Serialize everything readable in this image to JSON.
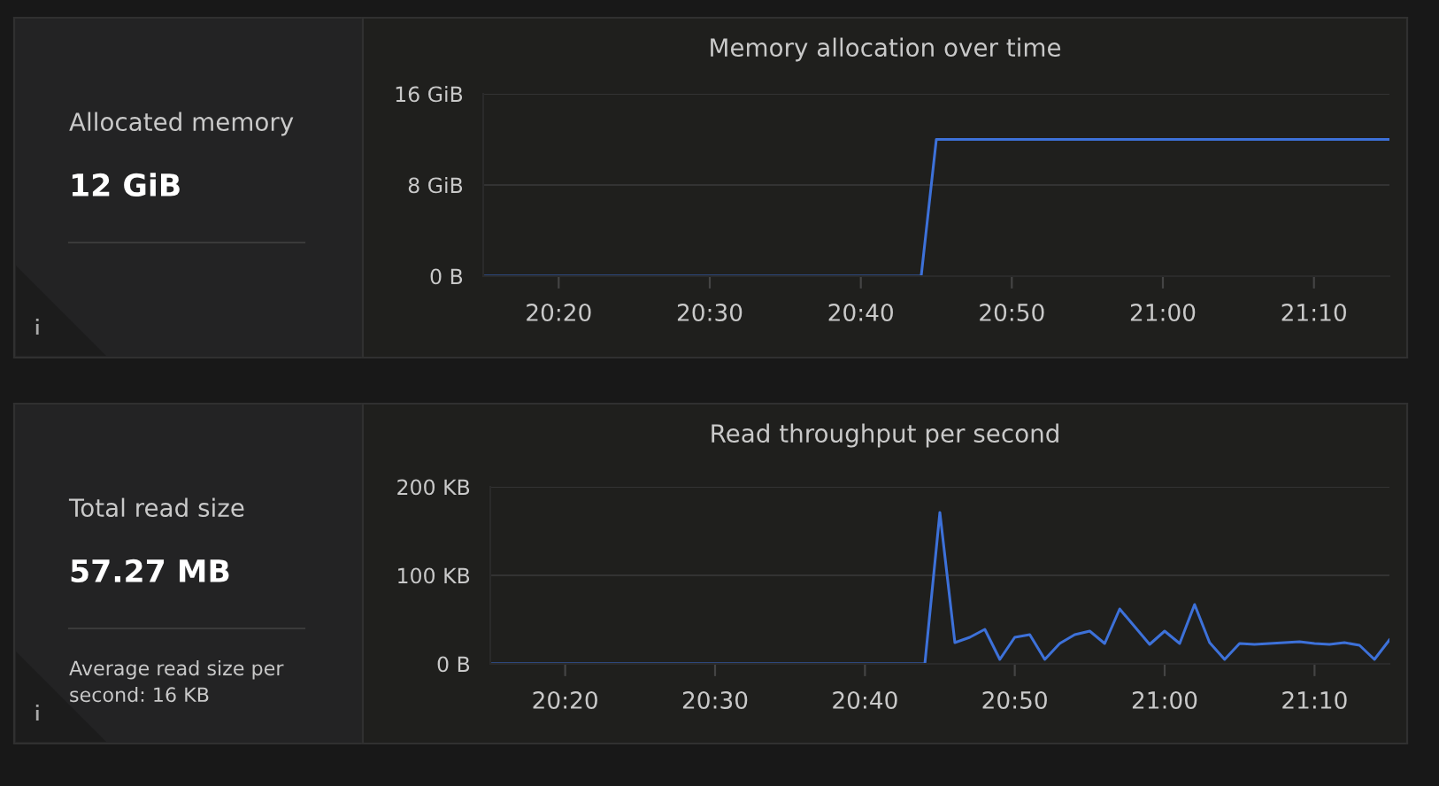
{
  "chart_data": [
    {
      "type": "other",
      "title": "Allocated memory",
      "annotations": [
        "12 GiB"
      ]
    },
    {
      "type": "line",
      "title": "Memory allocation over time",
      "xlim": [
        20.25,
        21.25
      ],
      "ylim": [
        0,
        16
      ],
      "xticks": [
        {
          "value": 20.3333,
          "label": "20:20"
        },
        {
          "value": 20.5,
          "label": "20:30"
        },
        {
          "value": 20.6667,
          "label": "20:40"
        },
        {
          "value": 20.8333,
          "label": "20:50"
        },
        {
          "value": 21.0,
          "label": "21:00"
        },
        {
          "value": 21.1667,
          "label": "21:10"
        }
      ],
      "yticks": [
        {
          "value": 0,
          "label": "0 B"
        },
        {
          "value": 8,
          "label": "8 GiB"
        },
        {
          "value": 16,
          "label": "16 GiB"
        }
      ],
      "grid": "y",
      "line_style": "solid",
      "series": [
        {
          "color": "#3d71d9",
          "x": [
            20.25,
            20.7333,
            20.75,
            21.25
          ],
          "values": [
            0,
            0,
            12,
            12
          ]
        }
      ]
    },
    {
      "type": "other",
      "title": "Total read size",
      "annotations": [
        "57.27 MB",
        "Average read size per second: 16 KB"
      ]
    },
    {
      "type": "line",
      "title": "Read throughput per second",
      "xlim": [
        20.25,
        21.25
      ],
      "ylim": [
        0,
        200
      ],
      "xticks": [
        {
          "value": 20.3333,
          "label": "20:20"
        },
        {
          "value": 20.5,
          "label": "20:30"
        },
        {
          "value": 20.6667,
          "label": "20:40"
        },
        {
          "value": 20.8333,
          "label": "20:50"
        },
        {
          "value": 21.0,
          "label": "21:00"
        },
        {
          "value": 21.1667,
          "label": "21:10"
        }
      ],
      "yticks": [
        {
          "value": 0,
          "label": "0 B"
        },
        {
          "value": 100,
          "label": "100 KB"
        },
        {
          "value": 200,
          "label": "200 KB"
        }
      ],
      "grid": "y",
      "line_style": "solid",
      "series": [
        {
          "color": "#3d71d9",
          "x": [
            20.25,
            20.7333,
            20.75,
            20.7667,
            20.7833,
            20.8,
            20.8167,
            20.8333,
            20.85,
            20.8667,
            20.8833,
            20.9,
            20.9167,
            20.9333,
            20.95,
            20.9667,
            20.9833,
            21.0,
            21.0167,
            21.0333,
            21.05,
            21.0667,
            21.0833,
            21.1,
            21.1167,
            21.1333,
            21.15,
            21.1667,
            21.1833,
            21.2,
            21.2167,
            21.2333,
            21.25
          ],
          "values": [
            0,
            0,
            171,
            24,
            30,
            39,
            5,
            30,
            33,
            5,
            23,
            33,
            37,
            23,
            62,
            42,
            22,
            37,
            23,
            67,
            24,
            5,
            23,
            22,
            23,
            24,
            25,
            23,
            22,
            24,
            21,
            5,
            27
          ]
        }
      ]
    }
  ]
}
